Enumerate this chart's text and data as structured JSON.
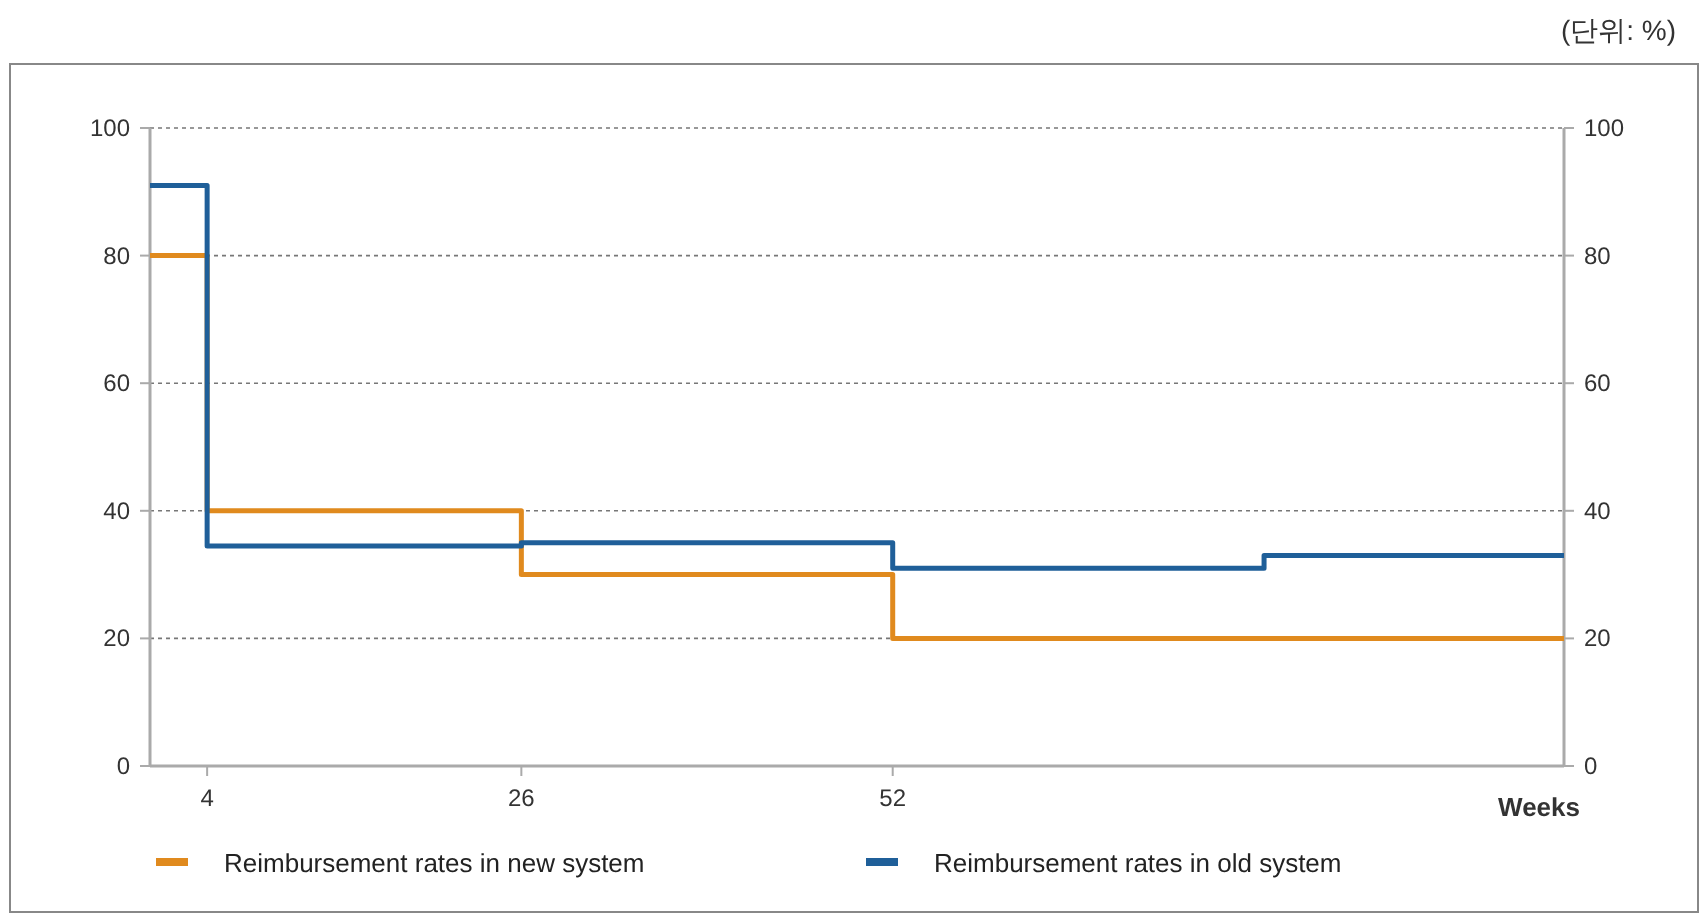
{
  "chart_data": {
    "type": "step",
    "xlabel": "Weeks",
    "annotations": [
      "(단위: %)"
    ],
    "xlim": [
      0,
      99
    ],
    "xticks": [
      4,
      26,
      52
    ],
    "ylim": [
      0,
      100
    ],
    "yticks": [
      0,
      20,
      40,
      60,
      80,
      100
    ],
    "y2lim": [
      0,
      100
    ],
    "y2ticks": [
      0,
      20,
      40,
      60,
      80,
      100
    ],
    "grid": "y",
    "legend": "bottom",
    "series": [
      {
        "name": "Reimbursement rates in new system",
        "color": "#e08a1e",
        "x": [
          0,
          4,
          26,
          52,
          99
        ],
        "values": [
          80,
          40,
          30,
          20,
          20
        ]
      },
      {
        "name": "Reimbursement rates in old system",
        "color": "#1f5f99",
        "x": [
          0,
          4,
          26,
          52,
          78,
          99
        ],
        "values": [
          91,
          34.5,
          35,
          31,
          33,
          33
        ]
      }
    ]
  }
}
